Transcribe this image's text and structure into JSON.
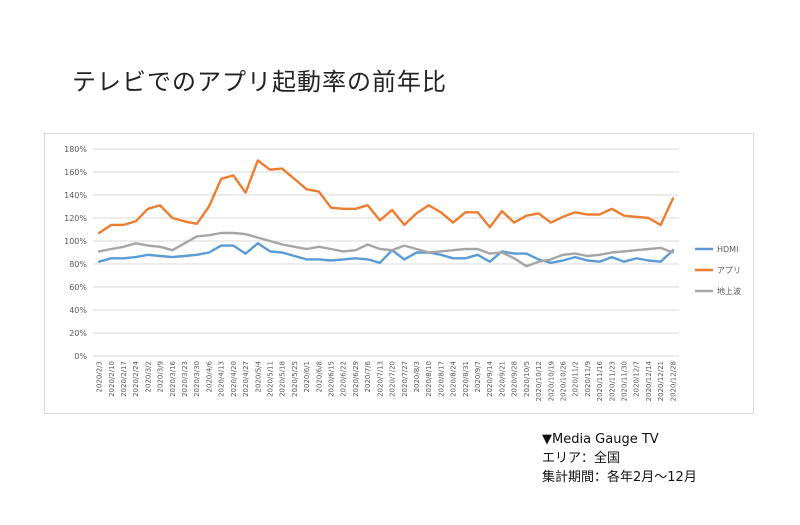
{
  "title": "テレビでのアプリ起動率の前年比",
  "source": {
    "line1": "▼Media Gauge TV",
    "line2": "エリア：全国",
    "line3": "集計期間：各年2月〜12月"
  },
  "chart_data": {
    "type": "line",
    "ylim": [
      0,
      180
    ],
    "yticks": [
      0,
      20,
      40,
      60,
      80,
      100,
      120,
      140,
      160,
      180
    ],
    "ytick_labels": [
      "0%",
      "20%",
      "40%",
      "60%",
      "80%",
      "100%",
      "120%",
      "140%",
      "160%",
      "180%"
    ],
    "grid": true,
    "legend": "right",
    "x": [
      "2020/2/3",
      "2020/2/10",
      "2020/2/17",
      "2020/2/24",
      "2020/3/2",
      "2020/3/9",
      "2020/3/16",
      "2020/3/23",
      "2020/3/30",
      "2020/4/6",
      "2020/4/13",
      "2020/4/20",
      "2020/4/27",
      "2020/5/4",
      "2020/5/11",
      "2020/5/18",
      "2020/5/25",
      "2020/6/1",
      "2020/6/8",
      "2020/6/15",
      "2020/6/22",
      "2020/6/29",
      "2020/7/6",
      "2020/7/13",
      "2020/7/20",
      "2020/7/27",
      "2020/8/3",
      "2020/8/10",
      "2020/8/17",
      "2020/8/24",
      "2020/8/31",
      "2020/9/7",
      "2020/9/14",
      "2020/9/21",
      "2020/9/28",
      "2020/10/5",
      "2020/10/12",
      "2020/10/19",
      "2020/10/26",
      "2020/11/2",
      "2020/11/9",
      "2020/11/16",
      "2020/11/23",
      "2020/11/30",
      "2020/12/7",
      "2020/12/14",
      "2020/12/21",
      "2020/12/28"
    ],
    "series": [
      {
        "name": "HDMI",
        "color": "#5b9bd5",
        "values": [
          82,
          85,
          85,
          86,
          88,
          87,
          86,
          87,
          88,
          90,
          96,
          96,
          89,
          98,
          91,
          90,
          87,
          84,
          84,
          83,
          84,
          85,
          84,
          81,
          92,
          84,
          90,
          90,
          88,
          85,
          85,
          88,
          82,
          91,
          89,
          89,
          84,
          81,
          83,
          86,
          83,
          82,
          86,
          82,
          85,
          83,
          82,
          92
        ]
      },
      {
        "name": "アプリ",
        "color": "#ed7d31",
        "values": [
          107,
          114,
          114,
          117,
          128,
          131,
          120,
          117,
          115,
          130,
          154,
          157,
          142,
          170,
          162,
          163,
          154,
          145,
          143,
          129,
          128,
          128,
          131,
          118,
          127,
          114,
          124,
          131,
          125,
          116,
          125,
          125,
          112,
          126,
          116,
          122,
          124,
          116,
          121,
          125,
          123,
          123,
          128,
          122,
          121,
          120,
          114,
          137
        ]
      },
      {
        "name": "地上波",
        "color": "#a5a5a5",
        "values": [
          91,
          93,
          95,
          98,
          96,
          95,
          92,
          98,
          104,
          105,
          107,
          107,
          106,
          103,
          100,
          97,
          95,
          93,
          95,
          93,
          91,
          92,
          97,
          93,
          92,
          96,
          93,
          90,
          91,
          92,
          93,
          93,
          89,
          90,
          85,
          78,
          82,
          84,
          88,
          89,
          87,
          88,
          90,
          91,
          92,
          93,
          94,
          90
        ]
      }
    ]
  }
}
